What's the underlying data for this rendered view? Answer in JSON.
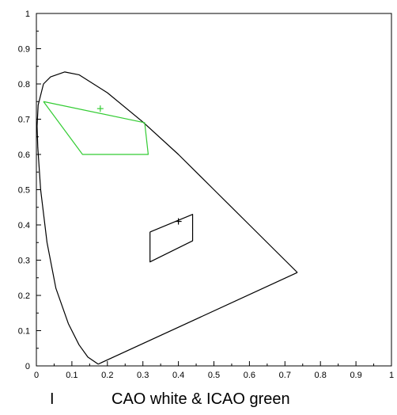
{
  "chart_data": {
    "type": "scatter",
    "title_left": "I",
    "title": "CAO white & ICAO green",
    "xlim": [
      0,
      1
    ],
    "ylim": [
      0,
      1
    ],
    "grid": false,
    "x_ticks": [
      "0",
      "0.1",
      "0.2",
      "0.3",
      "0.4",
      "0.5",
      "0.6",
      "0.7",
      "0.8",
      "0.9",
      "1"
    ],
    "y_ticks": [
      "0",
      "0.1",
      "0.2",
      "0.3",
      "0.4",
      "0.5",
      "0.6",
      "0.7",
      "0.8",
      "0.9",
      "1"
    ],
    "colors": {
      "spectral_locus": "#000000",
      "white_region": "#000000",
      "green_region": "#33cc33",
      "white_marker": "#000000",
      "green_marker": "#33cc33"
    },
    "spectral_locus": {
      "x": [
        0.174,
        0.145,
        0.12,
        0.09,
        0.055,
        0.03,
        0.012,
        0.004,
        0.002,
        0.005,
        0.02,
        0.04,
        0.08,
        0.12,
        0.2,
        0.3,
        0.4,
        0.5,
        0.6,
        0.65,
        0.7,
        0.735
      ],
      "y": [
        0.005,
        0.025,
        0.06,
        0.12,
        0.22,
        0.35,
        0.5,
        0.62,
        0.68,
        0.74,
        0.8,
        0.82,
        0.834,
        0.826,
        0.775,
        0.692,
        0.6,
        0.5,
        0.4,
        0.35,
        0.3,
        0.265
      ]
    },
    "purple_line": {
      "x": [
        0.735,
        0.174
      ],
      "y": [
        0.265,
        0.005
      ]
    },
    "green_region": {
      "x": [
        0.02,
        0.13,
        0.315,
        0.305,
        0.02
      ],
      "y": [
        0.75,
        0.6,
        0.6,
        0.69,
        0.75
      ]
    },
    "white_region": {
      "x": [
        0.32,
        0.44,
        0.44,
        0.32,
        0.32
      ],
      "y": [
        0.38,
        0.43,
        0.355,
        0.295,
        0.38
      ]
    },
    "markers": [
      {
        "name": "green point",
        "x": 0.18,
        "y": 0.73,
        "symbol": "+"
      },
      {
        "name": "white point",
        "x": 0.4,
        "y": 0.41,
        "symbol": "+"
      }
    ]
  }
}
